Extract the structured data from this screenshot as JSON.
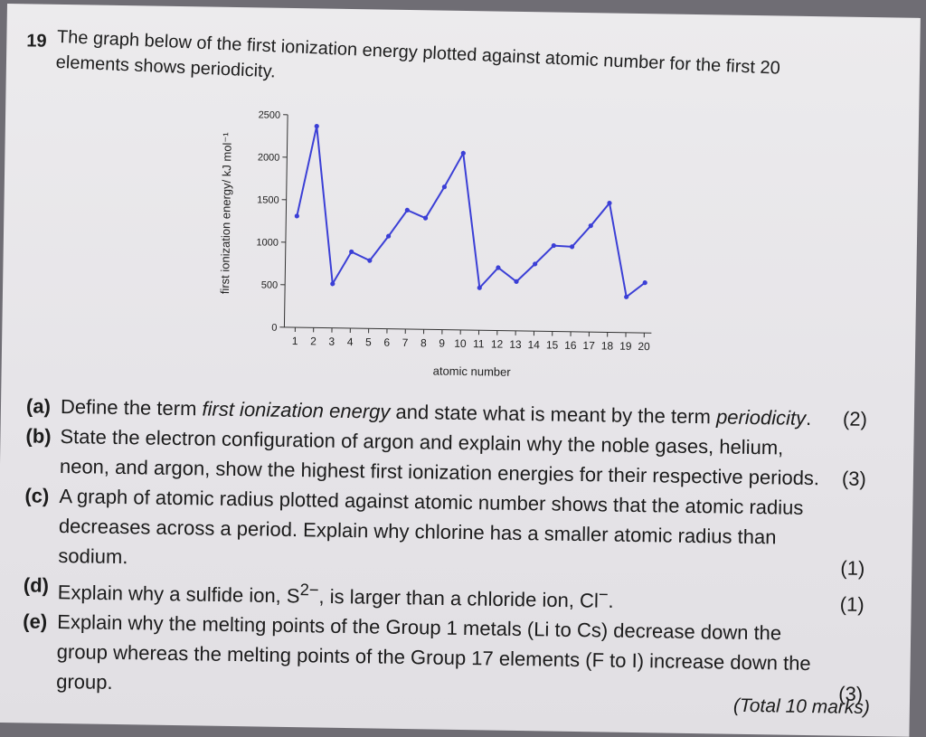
{
  "question": {
    "number": "19",
    "intro": "The graph below of the first ionization energy plotted against atomic number for the first 20 elements shows periodicity."
  },
  "chart_data": {
    "type": "line",
    "xlabel": "atomic number",
    "ylabel": "first ionization energy/ kJ mol⁻¹",
    "x": [
      1,
      2,
      3,
      4,
      5,
      6,
      7,
      8,
      9,
      10,
      11,
      12,
      13,
      14,
      15,
      16,
      17,
      18,
      19,
      20
    ],
    "yticks": [
      0,
      500,
      1000,
      1500,
      2000,
      2500
    ],
    "ylim": [
      0,
      2500
    ],
    "xlim": [
      1,
      20
    ],
    "series": [
      {
        "values": [
          1310,
          2370,
          520,
          900,
          800,
          1090,
          1400,
          1310,
          1680,
          2080,
          500,
          740,
          580,
          790,
          1010,
          1000,
          1250,
          1520,
          420,
          590
        ]
      }
    ],
    "line_color": "#3b3fd6",
    "grid": false
  },
  "parts": [
    {
      "label": "(a)",
      "pre": "Define the term ",
      "em1": "first ionization energy",
      "mid": " and state what is meant by the term ",
      "em2": "periodicity",
      "post": ".",
      "marks": "(2)"
    },
    {
      "label": "(b)",
      "text": "State the electron configuration of argon and explain why the noble gases, helium, neon, and argon, show the highest first ionization energies for their respective periods.",
      "marks": "(3)"
    },
    {
      "label": "(c)",
      "text": "A graph of atomic radius plotted against atomic number shows that the atomic radius decreases across a period. Explain why chlorine has a smaller atomic radius than sodium.",
      "marks": "(1)"
    },
    {
      "label": "(d)",
      "pre": "Explain why a sulfide ion, S",
      "sup1": "2−",
      "mid": ", is larger than a chloride ion, Cl",
      "sup2": "−",
      "post": ".",
      "marks": "(1)"
    },
    {
      "label": "(e)",
      "text": "Explain why the melting points of the Group 1 metals (Li to Cs) decrease down the group whereas the melting points of the Group 17 elements (F to I) increase down the group.",
      "marks": "(3)"
    }
  ],
  "total": "(Total 10 marks)"
}
